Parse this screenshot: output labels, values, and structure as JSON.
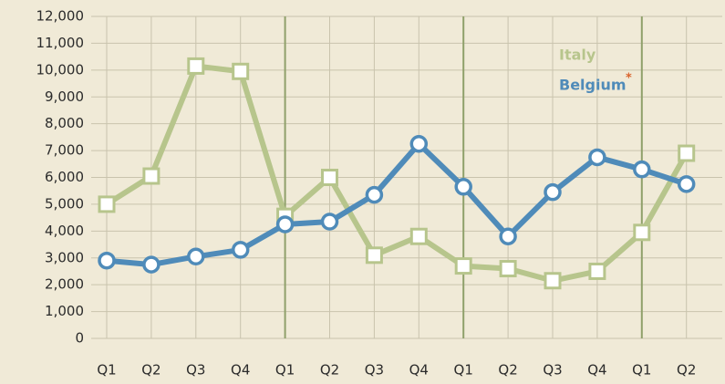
{
  "chart_data": {
    "type": "line",
    "categories": [
      "Q1",
      "Q2",
      "Q3",
      "Q4",
      "Q1",
      "Q2",
      "Q3",
      "Q4",
      "Q1",
      "Q2",
      "Q3",
      "Q4",
      "Q1",
      "Q2"
    ],
    "series": [
      {
        "name": "Italy",
        "color": "#b7c58c",
        "values": [
          5000,
          6050,
          10150,
          9950,
          4550,
          6000,
          3100,
          3800,
          2700,
          2600,
          2150,
          2500,
          3950,
          6900
        ]
      },
      {
        "name": "Belgium",
        "color": "#4f8bb9",
        "values": [
          2900,
          2750,
          3050,
          3300,
          4250,
          4350,
          5350,
          7250,
          5650,
          3800,
          5450,
          6750,
          6300,
          5750
        ]
      }
    ],
    "legend_note": "*",
    "ylim": [
      0,
      12000
    ],
    "yticks": [
      0,
      {
        "value": 1000,
        "label": "1,000"
      },
      {
        "value": 2000,
        "label": "2,000"
      },
      {
        "value": 3000,
        "label": "3,000"
      },
      {
        "value": 4000,
        "label": "4,000"
      },
      {
        "value": 5000,
        "label": "5,000"
      },
      {
        "value": 6000,
        "label": "6,000"
      },
      {
        "value": 7000,
        "label": "7,000"
      },
      {
        "value": 8000,
        "label": "8,000"
      },
      {
        "value": 9000,
        "label": "9,000"
      },
      {
        "value": 10000,
        "label": "10,000"
      },
      {
        "value": 11000,
        "label": "11,000"
      },
      {
        "value": 12000,
        "label": "12,000"
      }
    ],
    "grid": true
  }
}
